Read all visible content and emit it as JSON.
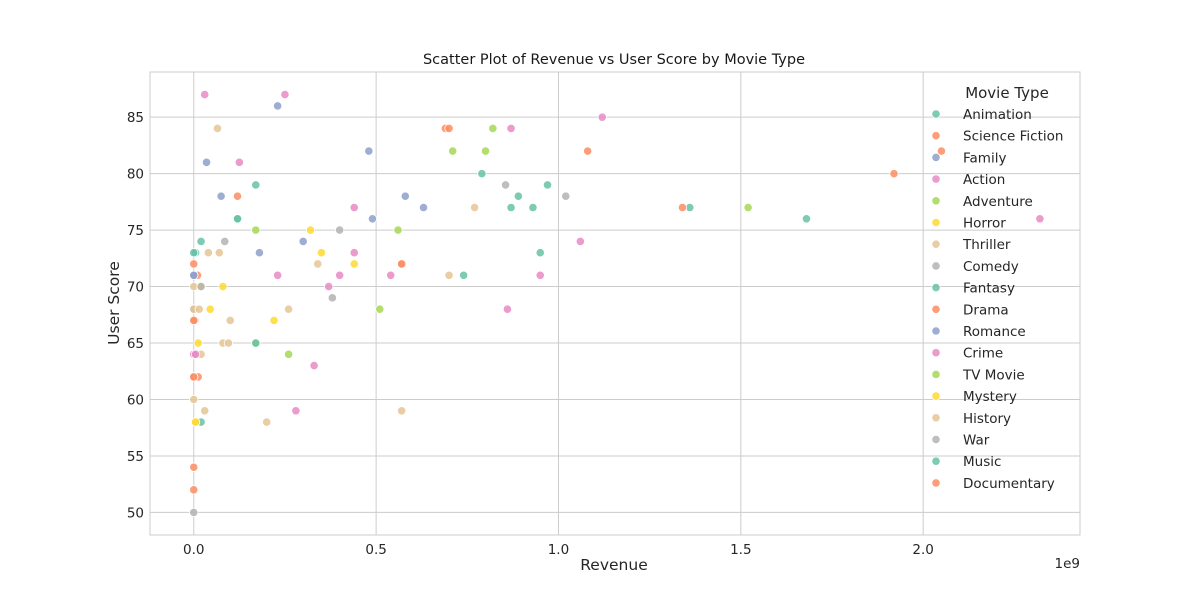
{
  "chart_data": {
    "type": "scatter",
    "title": "Scatter Plot of Revenue vs User Score by Movie Type",
    "xlabel": "Revenue",
    "ylabel": "User Score",
    "x_offset_label": "1e9",
    "xlim": [
      -0.12,
      2.43
    ],
    "ylim": [
      48,
      89
    ],
    "x_ticks": [
      0.0,
      0.5,
      1.0,
      1.5,
      2.0
    ],
    "x_tick_labels": [
      "0.0",
      "0.5",
      "1.0",
      "1.5",
      "2.0"
    ],
    "y_ticks": [
      50,
      55,
      60,
      65,
      70,
      75,
      80,
      85
    ],
    "y_tick_labels": [
      "50",
      "55",
      "60",
      "65",
      "70",
      "75",
      "80",
      "85"
    ],
    "grid": true,
    "legend": {
      "title": "Movie Type",
      "placement": "right"
    },
    "point_alpha": 0.85,
    "series": [
      {
        "name": "Animation",
        "color": "#66c2a5",
        "points": [
          [
            0.12,
            76
          ],
          [
            0.17,
            79
          ],
          [
            0.79,
            80
          ],
          [
            0.89,
            78
          ],
          [
            0.97,
            79
          ],
          [
            0.74,
            71
          ],
          [
            0.95,
            73
          ],
          [
            0.87,
            77
          ],
          [
            0.93,
            77
          ],
          [
            1.36,
            77
          ],
          [
            1.68,
            76
          ],
          [
            0.005,
            73
          ],
          [
            0.02,
            74
          ]
        ]
      },
      {
        "name": "Science Fiction",
        "color": "#fc8d62",
        "points": [
          [
            0.69,
            84
          ],
          [
            0.7,
            84
          ],
          [
            1.08,
            82
          ],
          [
            1.34,
            77
          ],
          [
            1.92,
            80
          ],
          [
            2.05,
            82
          ],
          [
            0.57,
            72
          ],
          [
            0.12,
            78
          ],
          [
            0.01,
            71
          ],
          [
            0.003,
            67
          ]
        ]
      },
      {
        "name": "Family",
        "color": "#8da0cb",
        "points": [
          [
            0.48,
            82
          ],
          [
            0.49,
            76
          ],
          [
            0.58,
            78
          ],
          [
            0.63,
            77
          ],
          [
            0.3,
            74
          ],
          [
            0.18,
            73
          ],
          [
            0.075,
            78
          ],
          [
            0.0,
            71
          ]
        ]
      },
      {
        "name": "Action",
        "color": "#e78ac3",
        "points": [
          [
            0.03,
            87
          ],
          [
            0.25,
            87
          ],
          [
            0.44,
            77
          ],
          [
            0.44,
            73
          ],
          [
            0.37,
            70
          ],
          [
            0.33,
            63
          ],
          [
            0.28,
            59
          ],
          [
            0.86,
            68
          ],
          [
            0.95,
            71
          ],
          [
            2.32,
            76
          ]
        ]
      },
      {
        "name": "Adventure",
        "color": "#a6d854",
        "points": [
          [
            0.82,
            84
          ],
          [
            0.71,
            82
          ],
          [
            0.8,
            82
          ],
          [
            1.52,
            77
          ],
          [
            0.56,
            75
          ],
          [
            0.51,
            68
          ],
          [
            0.17,
            75
          ],
          [
            0.17,
            65
          ],
          [
            0.26,
            64
          ]
        ]
      },
      {
        "name": "Horror",
        "color": "#ffd92f",
        "points": [
          [
            0.32,
            75
          ],
          [
            0.35,
            73
          ],
          [
            0.44,
            72
          ],
          [
            0.22,
            67
          ],
          [
            0.08,
            70
          ],
          [
            0.045,
            68
          ],
          [
            0.012,
            65
          ],
          [
            0.005,
            58
          ],
          [
            0.02,
            70
          ]
        ]
      },
      {
        "name": "Thriller",
        "color": "#e5c494",
        "points": [
          [
            0.77,
            77
          ],
          [
            0.34,
            72
          ],
          [
            0.26,
            68
          ],
          [
            0.1,
            67
          ],
          [
            0.08,
            65
          ],
          [
            0.07,
            73
          ],
          [
            0.04,
            73
          ],
          [
            0.02,
            64
          ],
          [
            0.0,
            70
          ],
          [
            0.0,
            60
          ]
        ]
      },
      {
        "name": "Comedy",
        "color": "#b3b3b3",
        "points": [
          [
            0.4,
            75
          ],
          [
            0.38,
            69
          ],
          [
            0.085,
            74
          ],
          [
            0.02,
            70
          ],
          [
            0.0,
            68
          ],
          [
            0.0,
            50
          ],
          [
            1.02,
            78
          ]
        ]
      },
      {
        "name": "Fantasy",
        "color": "#66c2a5",
        "points": [
          [
            0.0,
            73
          ],
          [
            0.02,
            58
          ],
          [
            0.17,
            65
          ]
        ]
      },
      {
        "name": "Drama",
        "color": "#fc8d62",
        "points": [
          [
            0.0,
            62
          ],
          [
            0.0,
            52
          ],
          [
            0.0,
            54
          ],
          [
            0.012,
            62
          ],
          [
            0.0,
            72
          ]
        ]
      },
      {
        "name": "Romance",
        "color": "#8da0cb",
        "points": [
          [
            0.0,
            71
          ],
          [
            0.23,
            86
          ],
          [
            0.035,
            81
          ]
        ]
      },
      {
        "name": "Crime",
        "color": "#e78ac3",
        "points": [
          [
            0.0,
            64
          ],
          [
            0.005,
            64
          ],
          [
            0.23,
            71
          ],
          [
            0.4,
            71
          ],
          [
            0.54,
            71
          ],
          [
            0.125,
            81
          ],
          [
            0.87,
            84
          ],
          [
            1.12,
            85
          ],
          [
            1.06,
            74
          ]
        ]
      },
      {
        "name": "TV Movie",
        "color": "#a6d854",
        "points": []
      },
      {
        "name": "Mystery",
        "color": "#ffd92f",
        "points": [
          [
            0.005,
            58
          ]
        ]
      },
      {
        "name": "History",
        "color": "#e5c494",
        "points": [
          [
            0.065,
            84
          ],
          [
            0.2,
            58
          ],
          [
            0.57,
            59
          ],
          [
            0.7,
            71
          ],
          [
            0.03,
            59
          ],
          [
            0.0,
            68
          ],
          [
            0.015,
            68
          ],
          [
            0.095,
            65
          ]
        ]
      },
      {
        "name": "War",
        "color": "#b3b3b3",
        "points": [
          [
            0.855,
            79
          ]
        ]
      },
      {
        "name": "Music",
        "color": "#66c2a5",
        "points": [
          [
            0.12,
            76
          ]
        ]
      },
      {
        "name": "Documentary",
        "color": "#fc8d62",
        "points": [
          [
            0.57,
            72
          ],
          [
            0.0,
            62
          ],
          [
            0.0,
            67
          ]
        ]
      }
    ]
  }
}
